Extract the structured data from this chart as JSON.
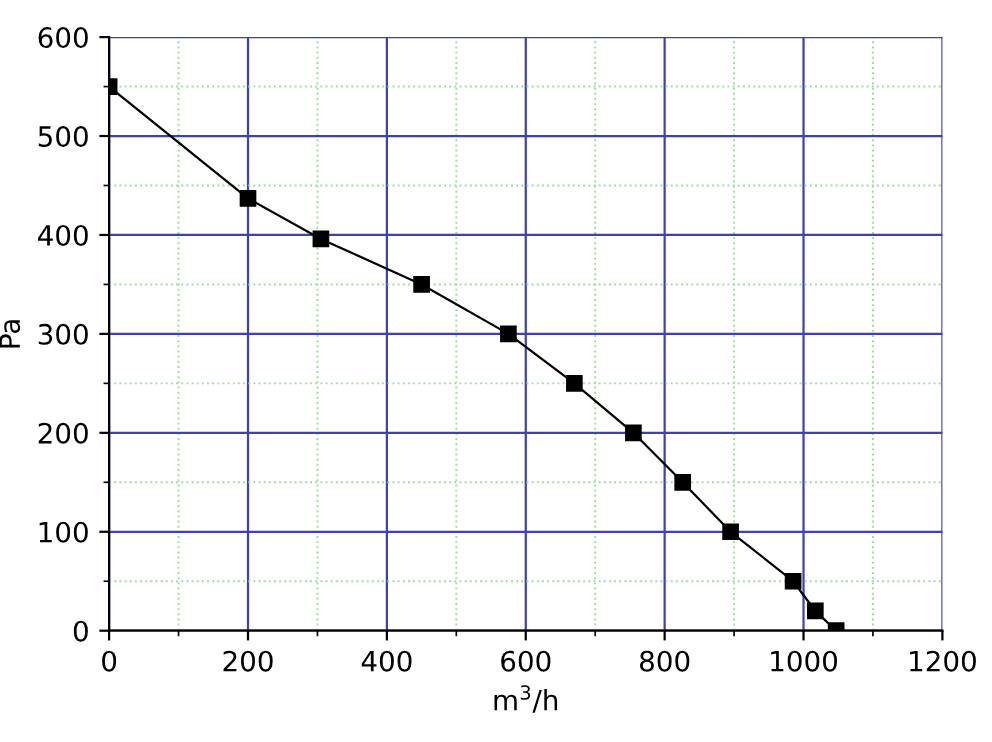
{
  "chart_data": {
    "type": "line",
    "xlabel": "m$^{3}$/h",
    "ylabel": "Pa",
    "x": [
      0,
      200,
      305,
      450,
      575,
      670,
      755,
      826,
      895,
      985,
      1017,
      1047
    ],
    "series": [
      {
        "color": "#000000",
        "values": [
          550,
          437,
          396,
          350,
          300,
          250,
          200,
          150,
          100,
          50,
          20,
          0
        ]
      }
    ],
    "marker": "square",
    "line_style": "solid",
    "xlim": [
      0,
      1200
    ],
    "ylim": [
      0,
      600
    ],
    "xticks": [
      0,
      {
        "value": 100,
        "label": null
      },
      200,
      {
        "value": 300,
        "label": null
      },
      400,
      {
        "value": 500,
        "label": null
      },
      600,
      {
        "value": 700,
        "label": null
      },
      800,
      {
        "value": 900,
        "label": null
      },
      1000,
      {
        "value": 1100,
        "label": null
      },
      1200
    ],
    "yticks": [
      0,
      {
        "value": 50,
        "label": null
      },
      100,
      {
        "value": 150,
        "label": null
      },
      200,
      {
        "value": 250,
        "label": null
      },
      300,
      {
        "value": 350,
        "label": null
      },
      400,
      {
        "value": 450,
        "label": null
      },
      500,
      {
        "value": 550,
        "label": null
      },
      600
    ],
    "grid": true
  }
}
